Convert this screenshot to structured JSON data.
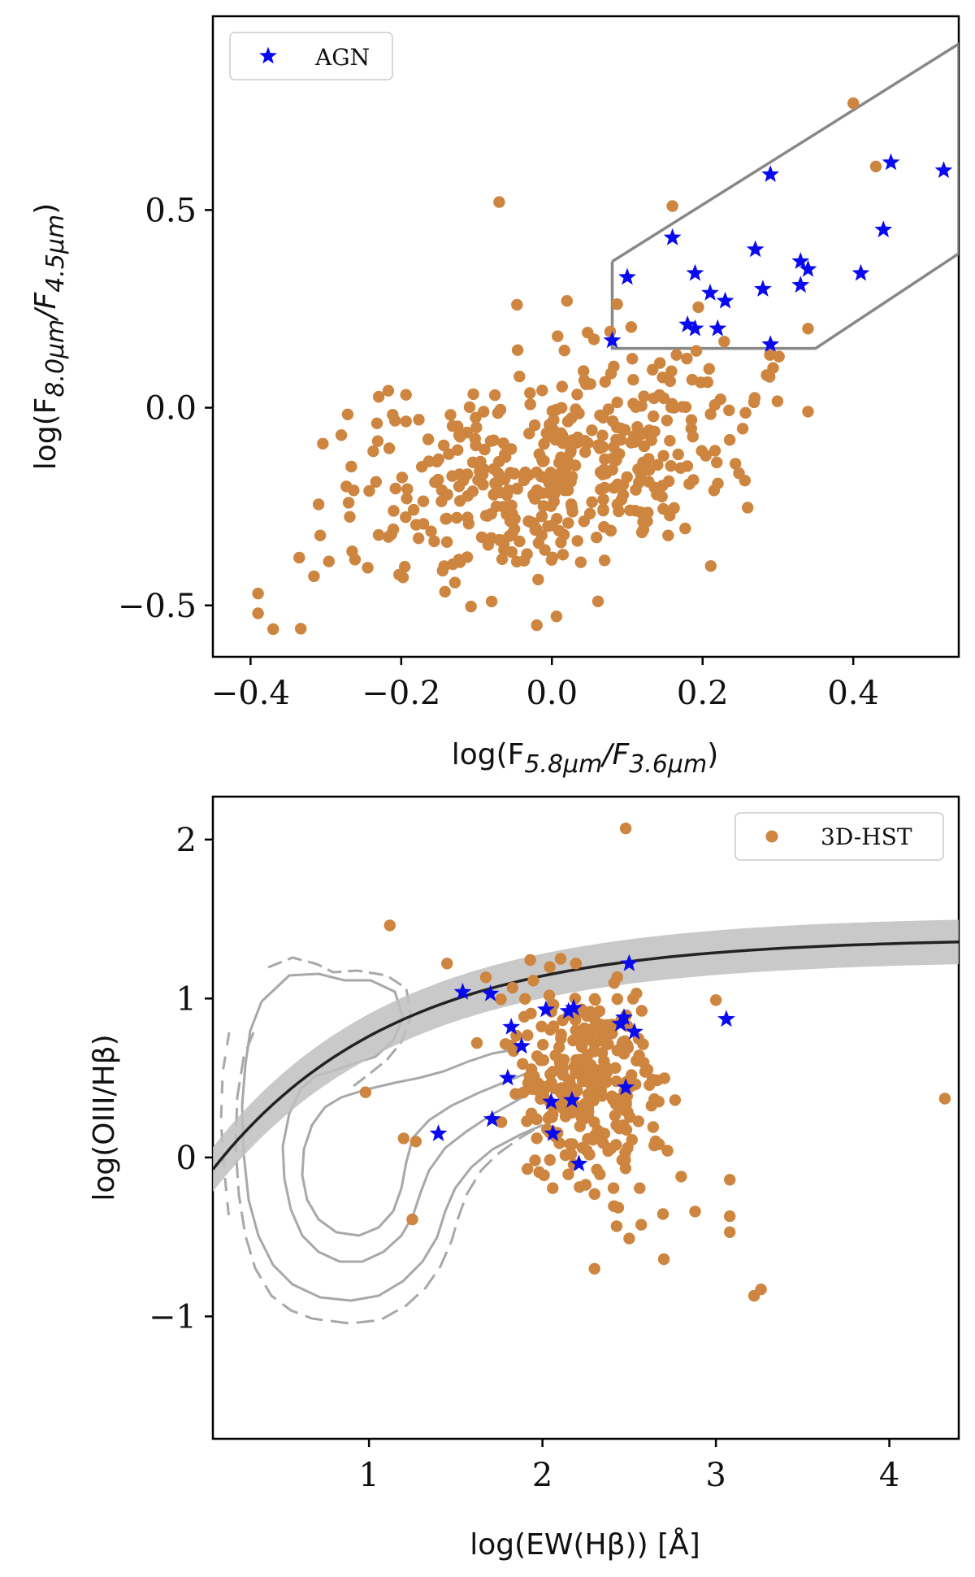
{
  "colors": {
    "galaxy": "#cd853f",
    "agn": "#0a0af0",
    "wedge": "#888888",
    "fit": "#222222",
    "band": "#c0c0c0",
    "contour": "#a8a8a8"
  },
  "chart_data": [
    {
      "type": "scatter",
      "xlabel_main": "log(F",
      "xlabel_sub1": "5.8μm",
      "xlabel_mid": "/F",
      "xlabel_sub2": "3.6μm",
      "xlabel_end": ")",
      "ylabel_main": "log(F",
      "ylabel_sub1": "8.0μm",
      "ylabel_mid": "/F",
      "ylabel_sub2": "4.5μm",
      "ylabel_end": ")",
      "xlim": [
        -0.45,
        0.54
      ],
      "ylim": [
        -0.63,
        0.99
      ],
      "xticks": [
        -0.4,
        -0.2,
        0.0,
        0.2,
        0.4
      ],
      "xtick_labels": [
        "−0.4",
        "−0.2",
        "0.0",
        "0.2",
        "0.4"
      ],
      "yticks": [
        -0.5,
        0.0,
        0.5
      ],
      "ytick_labels": [
        "−0.5",
        "0.0",
        "0.5"
      ],
      "legend": {
        "label": "AGN",
        "position": "top-left"
      },
      "wedge": [
        [
          0.08,
          0.37
        ],
        [
          0.08,
          0.15
        ],
        [
          0.35,
          0.15
        ],
        [
          0.54,
          0.39
        ],
        [
          0.54,
          0.92
        ],
        [
          0.08,
          0.37
        ]
      ],
      "agn_points": [
        [
          0.45,
          0.62
        ],
        [
          0.52,
          0.6
        ],
        [
          0.29,
          0.59
        ],
        [
          0.44,
          0.45
        ],
        [
          0.16,
          0.43
        ],
        [
          0.27,
          0.4
        ],
        [
          0.33,
          0.37
        ],
        [
          0.34,
          0.35
        ],
        [
          0.41,
          0.34
        ],
        [
          0.19,
          0.34
        ],
        [
          0.1,
          0.33
        ],
        [
          0.33,
          0.31
        ],
        [
          0.28,
          0.3
        ],
        [
          0.21,
          0.29
        ],
        [
          0.23,
          0.27
        ],
        [
          0.18,
          0.21
        ],
        [
          0.19,
          0.2
        ],
        [
          0.22,
          0.2
        ],
        [
          0.08,
          0.17
        ],
        [
          0.29,
          0.16
        ]
      ],
      "galaxy_count": 430,
      "galaxy_extra": [
        [
          0.4,
          0.77
        ],
        [
          0.43,
          0.61
        ],
        [
          -0.07,
          0.52
        ],
        [
          0.16,
          0.51
        ],
        [
          0.02,
          0.27
        ],
        [
          0.34,
          0.2
        ],
        [
          0.34,
          -0.01
        ],
        [
          -0.08,
          -0.49
        ],
        [
          -0.02,
          -0.55
        ],
        [
          -0.37,
          -0.56
        ],
        [
          -0.39,
          -0.52
        ],
        [
          -0.39,
          -0.47
        ]
      ]
    },
    {
      "type": "scatter",
      "xlabel": "log(EW(Hβ)) [Å]",
      "ylabel": "log(OIII/Hβ)",
      "xlim": [
        0.1,
        4.4
      ],
      "ylim": [
        -1.77,
        2.27
      ],
      "xticks": [
        1,
        2,
        3,
        4
      ],
      "xtick_labels": [
        "1",
        "2",
        "3",
        "4"
      ],
      "yticks": [
        -1,
        0,
        1,
        2
      ],
      "ytick_labels": [
        "−1",
        "0",
        "1",
        "2"
      ],
      "legend": {
        "label": "3D-HST",
        "position": "top-right"
      },
      "fit_curve": "y = 1.38 − 1.6·exp(−x/1.05)",
      "agn_points": [
        [
          2.5,
          1.22
        ],
        [
          1.54,
          1.04
        ],
        [
          1.7,
          1.03
        ],
        [
          2.02,
          0.93
        ],
        [
          2.15,
          0.92
        ],
        [
          2.18,
          0.94
        ],
        [
          2.47,
          0.88
        ],
        [
          2.45,
          0.84
        ],
        [
          2.53,
          0.79
        ],
        [
          1.82,
          0.82
        ],
        [
          1.88,
          0.7
        ],
        [
          3.06,
          0.87
        ],
        [
          1.8,
          0.5
        ],
        [
          2.48,
          0.44
        ],
        [
          2.05,
          0.35
        ],
        [
          2.17,
          0.36
        ],
        [
          1.71,
          0.24
        ],
        [
          1.4,
          0.15
        ],
        [
          2.06,
          0.15
        ],
        [
          2.21,
          -0.04
        ]
      ],
      "galaxy_count": 290,
      "galaxy_extra": [
        [
          2.48,
          2.07
        ],
        [
          1.12,
          1.46
        ],
        [
          1.45,
          1.22
        ],
        [
          4.32,
          0.37
        ],
        [
          3.26,
          -0.83
        ],
        [
          3.22,
          -0.87
        ],
        [
          3.08,
          -0.37
        ],
        [
          3.08,
          -0.47
        ],
        [
          3.08,
          -0.14
        ],
        [
          2.7,
          -0.64
        ],
        [
          2.3,
          -0.7
        ],
        [
          2.5,
          -0.51
        ],
        [
          1.25,
          -0.39
        ],
        [
          0.98,
          0.41
        ],
        [
          1.2,
          0.12
        ],
        [
          1.27,
          0.1
        ],
        [
          3.0,
          0.99
        ],
        [
          2.88,
          -0.34
        ],
        [
          2.8,
          -0.12
        ]
      ]
    }
  ]
}
